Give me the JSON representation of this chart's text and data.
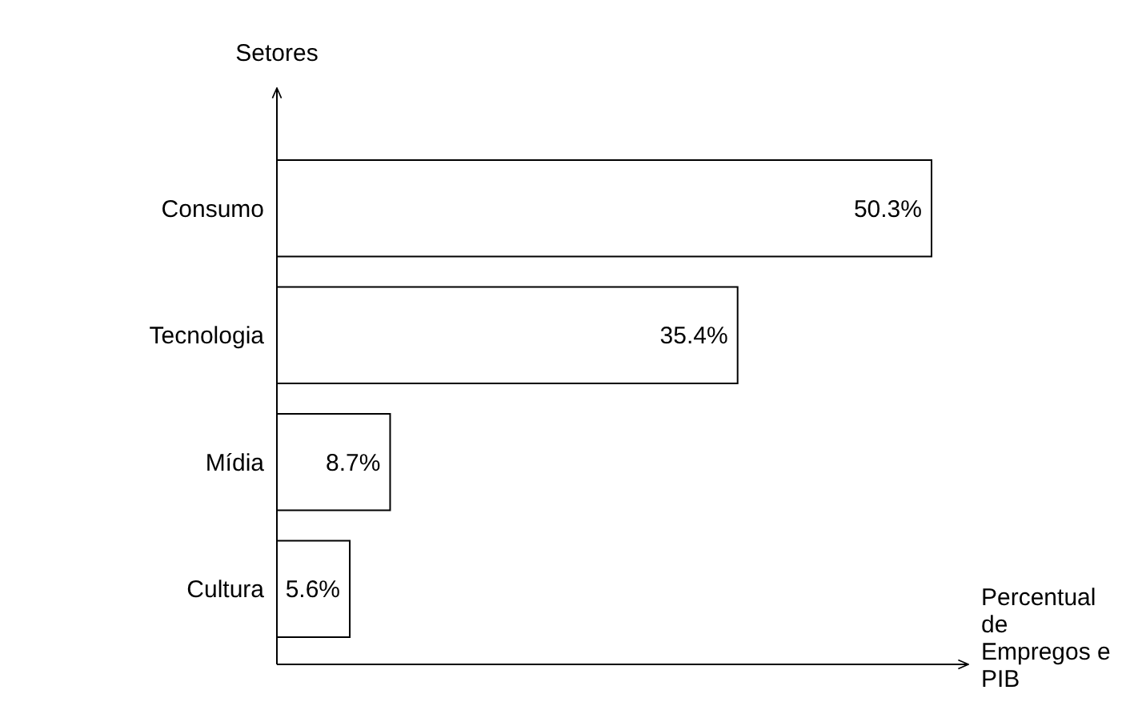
{
  "chart_data": {
    "type": "bar",
    "orientation": "horizontal",
    "categories": [
      "Consumo",
      "Tecnologia",
      "Mídia",
      "Cultura"
    ],
    "values": [
      50.3,
      35.4,
      8.7,
      5.6
    ],
    "value_labels": [
      "50.3%",
      "35.4%",
      "8.7%",
      "5.6%"
    ],
    "color": "#ffffff",
    "xlabel": "Percentual de Empregos e PIB",
    "ylabel": "Setores"
  }
}
